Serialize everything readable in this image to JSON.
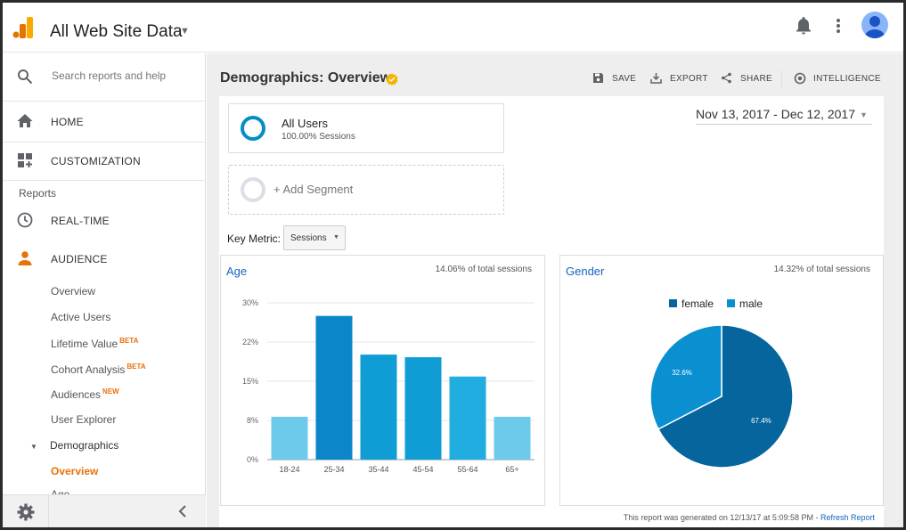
{
  "header": {
    "account_name": "All Web Site Data",
    "icons": [
      "analytics-logo",
      "notifications-bell-icon",
      "more-vert-icon",
      "account-avatar-icon"
    ]
  },
  "sidebar": {
    "search_placeholder": "Search reports and help",
    "home": "HOME",
    "customization": "CUSTOMIZATION",
    "reports_label": "Reports",
    "realtime": "REAL-TIME",
    "audience": "AUDIENCE",
    "audience_items": [
      {
        "label": "Overview",
        "badge": ""
      },
      {
        "label": "Active Users",
        "badge": ""
      },
      {
        "label": "Lifetime Value",
        "badge": "BETA"
      },
      {
        "label": "Cohort Analysis",
        "badge": "BETA"
      },
      {
        "label": "Audiences",
        "badge": "NEW"
      },
      {
        "label": "User Explorer",
        "badge": ""
      }
    ],
    "demographics": "Demographics",
    "demographics_items": [
      "Overview",
      "Age"
    ],
    "accent_color": "#e8710a"
  },
  "main": {
    "page_title": "Demographics: Overview",
    "toolbar": {
      "save": "SAVE",
      "export": "EXPORT",
      "share": "SHARE",
      "intelligence": "INTELLIGENCE"
    },
    "segments": {
      "all_users_name": "All Users",
      "all_users_meta": "100.00% Sessions",
      "add_segment": "+ Add Segment"
    },
    "date_range": "Nov 13, 2017 - Dec 12, 2017",
    "key_metric_label": "Key Metric:",
    "key_metric_value": "Sessions",
    "age_card": {
      "title": "Age",
      "share": "14.06% of total sessions"
    },
    "gender_card": {
      "title": "Gender",
      "share": "14.32% of total sessions"
    },
    "footer_text": "This report was generated on 12/13/17 at 5:09:58 PM - ",
    "refresh_link": "Refresh Report"
  },
  "chart_data": [
    {
      "type": "bar",
      "title": "Age",
      "categories": [
        "18-24",
        "25-34",
        "35-44",
        "45-54",
        "55-64",
        "65+"
      ],
      "values": [
        8.2,
        27.5,
        20.1,
        19.6,
        15.9,
        8.2
      ],
      "bar_colors": [
        "#6ccbeb",
        "#0b86c9",
        "#109dd6",
        "#109dd6",
        "#21ade0",
        "#6ccbeb"
      ],
      "yticks": [
        "0%",
        "8%",
        "15%",
        "22%",
        "30%"
      ],
      "ylim": [
        0,
        30
      ],
      "grid": true
    },
    {
      "type": "pie",
      "title": "Gender",
      "labels": [
        "female",
        "male"
      ],
      "values": [
        67.4,
        32.6
      ],
      "slice_labels": [
        "67.4%",
        "32.6%"
      ],
      "colors": [
        "#05659c",
        "#0a8fd1"
      ],
      "legend_position": "top"
    }
  ]
}
